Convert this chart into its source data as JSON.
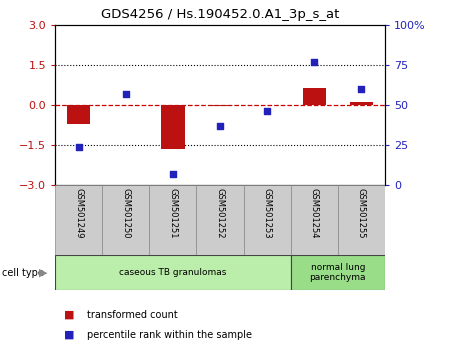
{
  "title": "GDS4256 / Hs.190452.0.A1_3p_s_at",
  "samples": [
    "GSM501249",
    "GSM501250",
    "GSM501251",
    "GSM501252",
    "GSM501253",
    "GSM501254",
    "GSM501255"
  ],
  "transformed_count": [
    -0.72,
    0.0,
    -1.65,
    -0.05,
    0.0,
    0.65,
    0.12
  ],
  "percentile_rank": [
    24,
    57,
    7,
    37,
    46,
    77,
    60
  ],
  "ylim_left": [
    -3,
    3
  ],
  "ylim_right": [
    0,
    100
  ],
  "left_yticks": [
    -3,
    -1.5,
    0,
    1.5,
    3
  ],
  "right_yticks": [
    0,
    25,
    50,
    75,
    100
  ],
  "right_yticklabels": [
    "0",
    "25",
    "50",
    "75",
    "100%"
  ],
  "bar_color": "#bb1111",
  "dot_color": "#2222bb",
  "zero_line_color": "#cc0000",
  "dotted_line_color": "#000000",
  "cell_groups": [
    {
      "label": "caseous TB granulomas",
      "start": 0,
      "end": 4,
      "color": "#bbeeaa"
    },
    {
      "label": "normal lung\nparenchyma",
      "start": 5,
      "end": 6,
      "color": "#99dd88"
    }
  ],
  "cell_type_label": "cell type",
  "box_color": "#cccccc",
  "legend": [
    {
      "label": "transformed count",
      "color": "#bb1111"
    },
    {
      "label": "percentile rank within the sample",
      "color": "#2222bb"
    }
  ]
}
